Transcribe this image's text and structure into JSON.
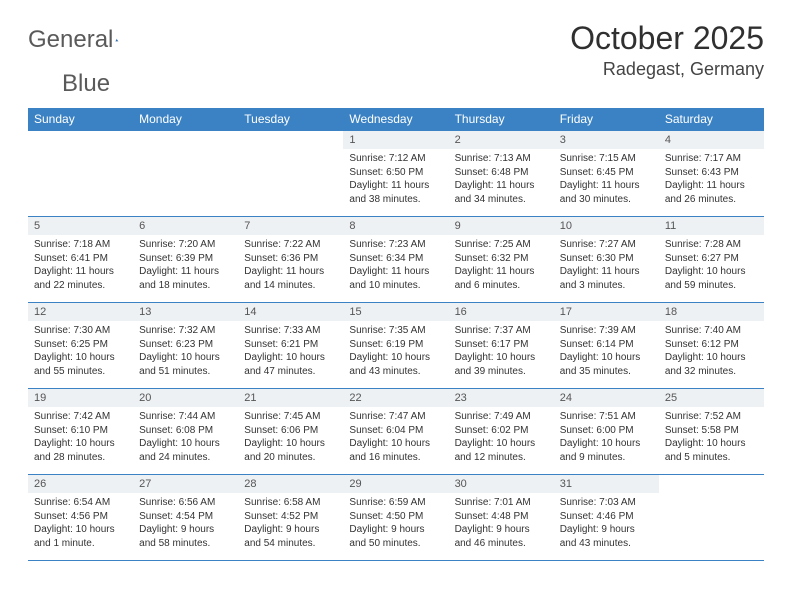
{
  "brand": {
    "word1": "General",
    "word2": "Blue"
  },
  "title": "October 2025",
  "location": "Radegast, Germany",
  "colors": {
    "header_bg": "#3b82c4",
    "header_text": "#ffffff",
    "daynum_bg": "#eef1f4",
    "border": "#3b82c4",
    "brand_gray": "#5a5a5a",
    "brand_blue": "#2a6db0"
  },
  "weekdays": [
    "Sunday",
    "Monday",
    "Tuesday",
    "Wednesday",
    "Thursday",
    "Friday",
    "Saturday"
  ],
  "weeks": [
    [
      {
        "n": "",
        "sunrise": "",
        "sunset": "",
        "daylight": ""
      },
      {
        "n": "",
        "sunrise": "",
        "sunset": "",
        "daylight": ""
      },
      {
        "n": "",
        "sunrise": "",
        "sunset": "",
        "daylight": ""
      },
      {
        "n": "1",
        "sunrise": "Sunrise: 7:12 AM",
        "sunset": "Sunset: 6:50 PM",
        "daylight": "Daylight: 11 hours and 38 minutes."
      },
      {
        "n": "2",
        "sunrise": "Sunrise: 7:13 AM",
        "sunset": "Sunset: 6:48 PM",
        "daylight": "Daylight: 11 hours and 34 minutes."
      },
      {
        "n": "3",
        "sunrise": "Sunrise: 7:15 AM",
        "sunset": "Sunset: 6:45 PM",
        "daylight": "Daylight: 11 hours and 30 minutes."
      },
      {
        "n": "4",
        "sunrise": "Sunrise: 7:17 AM",
        "sunset": "Sunset: 6:43 PM",
        "daylight": "Daylight: 11 hours and 26 minutes."
      }
    ],
    [
      {
        "n": "5",
        "sunrise": "Sunrise: 7:18 AM",
        "sunset": "Sunset: 6:41 PM",
        "daylight": "Daylight: 11 hours and 22 minutes."
      },
      {
        "n": "6",
        "sunrise": "Sunrise: 7:20 AM",
        "sunset": "Sunset: 6:39 PM",
        "daylight": "Daylight: 11 hours and 18 minutes."
      },
      {
        "n": "7",
        "sunrise": "Sunrise: 7:22 AM",
        "sunset": "Sunset: 6:36 PM",
        "daylight": "Daylight: 11 hours and 14 minutes."
      },
      {
        "n": "8",
        "sunrise": "Sunrise: 7:23 AM",
        "sunset": "Sunset: 6:34 PM",
        "daylight": "Daylight: 11 hours and 10 minutes."
      },
      {
        "n": "9",
        "sunrise": "Sunrise: 7:25 AM",
        "sunset": "Sunset: 6:32 PM",
        "daylight": "Daylight: 11 hours and 6 minutes."
      },
      {
        "n": "10",
        "sunrise": "Sunrise: 7:27 AM",
        "sunset": "Sunset: 6:30 PM",
        "daylight": "Daylight: 11 hours and 3 minutes."
      },
      {
        "n": "11",
        "sunrise": "Sunrise: 7:28 AM",
        "sunset": "Sunset: 6:27 PM",
        "daylight": "Daylight: 10 hours and 59 minutes."
      }
    ],
    [
      {
        "n": "12",
        "sunrise": "Sunrise: 7:30 AM",
        "sunset": "Sunset: 6:25 PM",
        "daylight": "Daylight: 10 hours and 55 minutes."
      },
      {
        "n": "13",
        "sunrise": "Sunrise: 7:32 AM",
        "sunset": "Sunset: 6:23 PM",
        "daylight": "Daylight: 10 hours and 51 minutes."
      },
      {
        "n": "14",
        "sunrise": "Sunrise: 7:33 AM",
        "sunset": "Sunset: 6:21 PM",
        "daylight": "Daylight: 10 hours and 47 minutes."
      },
      {
        "n": "15",
        "sunrise": "Sunrise: 7:35 AM",
        "sunset": "Sunset: 6:19 PM",
        "daylight": "Daylight: 10 hours and 43 minutes."
      },
      {
        "n": "16",
        "sunrise": "Sunrise: 7:37 AM",
        "sunset": "Sunset: 6:17 PM",
        "daylight": "Daylight: 10 hours and 39 minutes."
      },
      {
        "n": "17",
        "sunrise": "Sunrise: 7:39 AM",
        "sunset": "Sunset: 6:14 PM",
        "daylight": "Daylight: 10 hours and 35 minutes."
      },
      {
        "n": "18",
        "sunrise": "Sunrise: 7:40 AM",
        "sunset": "Sunset: 6:12 PM",
        "daylight": "Daylight: 10 hours and 32 minutes."
      }
    ],
    [
      {
        "n": "19",
        "sunrise": "Sunrise: 7:42 AM",
        "sunset": "Sunset: 6:10 PM",
        "daylight": "Daylight: 10 hours and 28 minutes."
      },
      {
        "n": "20",
        "sunrise": "Sunrise: 7:44 AM",
        "sunset": "Sunset: 6:08 PM",
        "daylight": "Daylight: 10 hours and 24 minutes."
      },
      {
        "n": "21",
        "sunrise": "Sunrise: 7:45 AM",
        "sunset": "Sunset: 6:06 PM",
        "daylight": "Daylight: 10 hours and 20 minutes."
      },
      {
        "n": "22",
        "sunrise": "Sunrise: 7:47 AM",
        "sunset": "Sunset: 6:04 PM",
        "daylight": "Daylight: 10 hours and 16 minutes."
      },
      {
        "n": "23",
        "sunrise": "Sunrise: 7:49 AM",
        "sunset": "Sunset: 6:02 PM",
        "daylight": "Daylight: 10 hours and 12 minutes."
      },
      {
        "n": "24",
        "sunrise": "Sunrise: 7:51 AM",
        "sunset": "Sunset: 6:00 PM",
        "daylight": "Daylight: 10 hours and 9 minutes."
      },
      {
        "n": "25",
        "sunrise": "Sunrise: 7:52 AM",
        "sunset": "Sunset: 5:58 PM",
        "daylight": "Daylight: 10 hours and 5 minutes."
      }
    ],
    [
      {
        "n": "26",
        "sunrise": "Sunrise: 6:54 AM",
        "sunset": "Sunset: 4:56 PM",
        "daylight": "Daylight: 10 hours and 1 minute."
      },
      {
        "n": "27",
        "sunrise": "Sunrise: 6:56 AM",
        "sunset": "Sunset: 4:54 PM",
        "daylight": "Daylight: 9 hours and 58 minutes."
      },
      {
        "n": "28",
        "sunrise": "Sunrise: 6:58 AM",
        "sunset": "Sunset: 4:52 PM",
        "daylight": "Daylight: 9 hours and 54 minutes."
      },
      {
        "n": "29",
        "sunrise": "Sunrise: 6:59 AM",
        "sunset": "Sunset: 4:50 PM",
        "daylight": "Daylight: 9 hours and 50 minutes."
      },
      {
        "n": "30",
        "sunrise": "Sunrise: 7:01 AM",
        "sunset": "Sunset: 4:48 PM",
        "daylight": "Daylight: 9 hours and 46 minutes."
      },
      {
        "n": "31",
        "sunrise": "Sunrise: 7:03 AM",
        "sunset": "Sunset: 4:46 PM",
        "daylight": "Daylight: 9 hours and 43 minutes."
      },
      {
        "n": "",
        "sunrise": "",
        "sunset": "",
        "daylight": ""
      }
    ]
  ]
}
